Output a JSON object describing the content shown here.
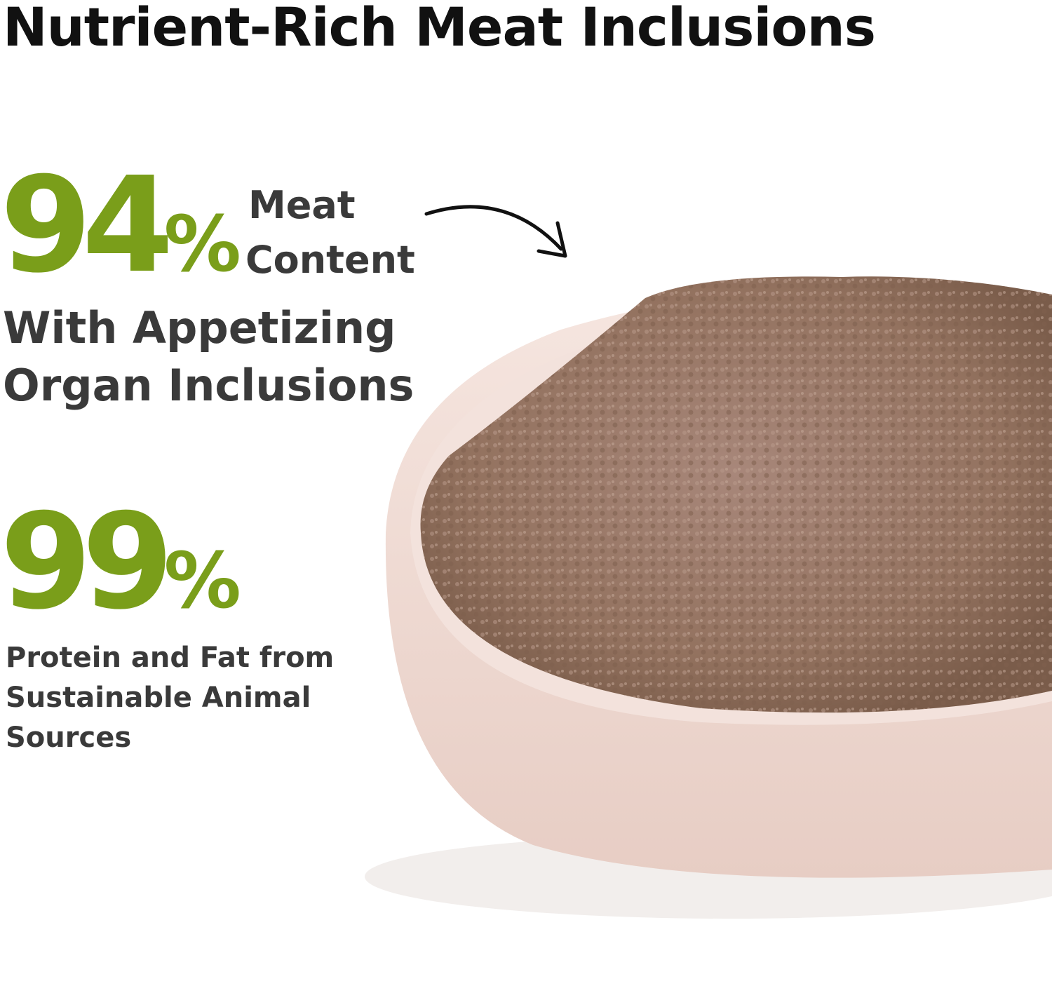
{
  "title": "Nutrient-Rich Meat Inclusions",
  "stat1": {
    "number": "94",
    "percent": "%",
    "label_line1": "Meat",
    "label_line2": "Content",
    "subtitle_line1": "With Appetizing",
    "subtitle_line2": "Organ Inclusions"
  },
  "stat2": {
    "number": "99",
    "percent": "%",
    "desc_line1": "Protein and Fat from",
    "desc_line2": "Sustainable Animal",
    "desc_line3": "Sources"
  },
  "colors": {
    "accent_green": "#7a9e1a",
    "text_dark": "#3a3a3a",
    "title": "#111111",
    "bowl": "#efd9d2",
    "food": "#9a7a68"
  },
  "image": {
    "subject": "bowl-of-wet-food",
    "arrow": "curved-arrow-icon"
  }
}
